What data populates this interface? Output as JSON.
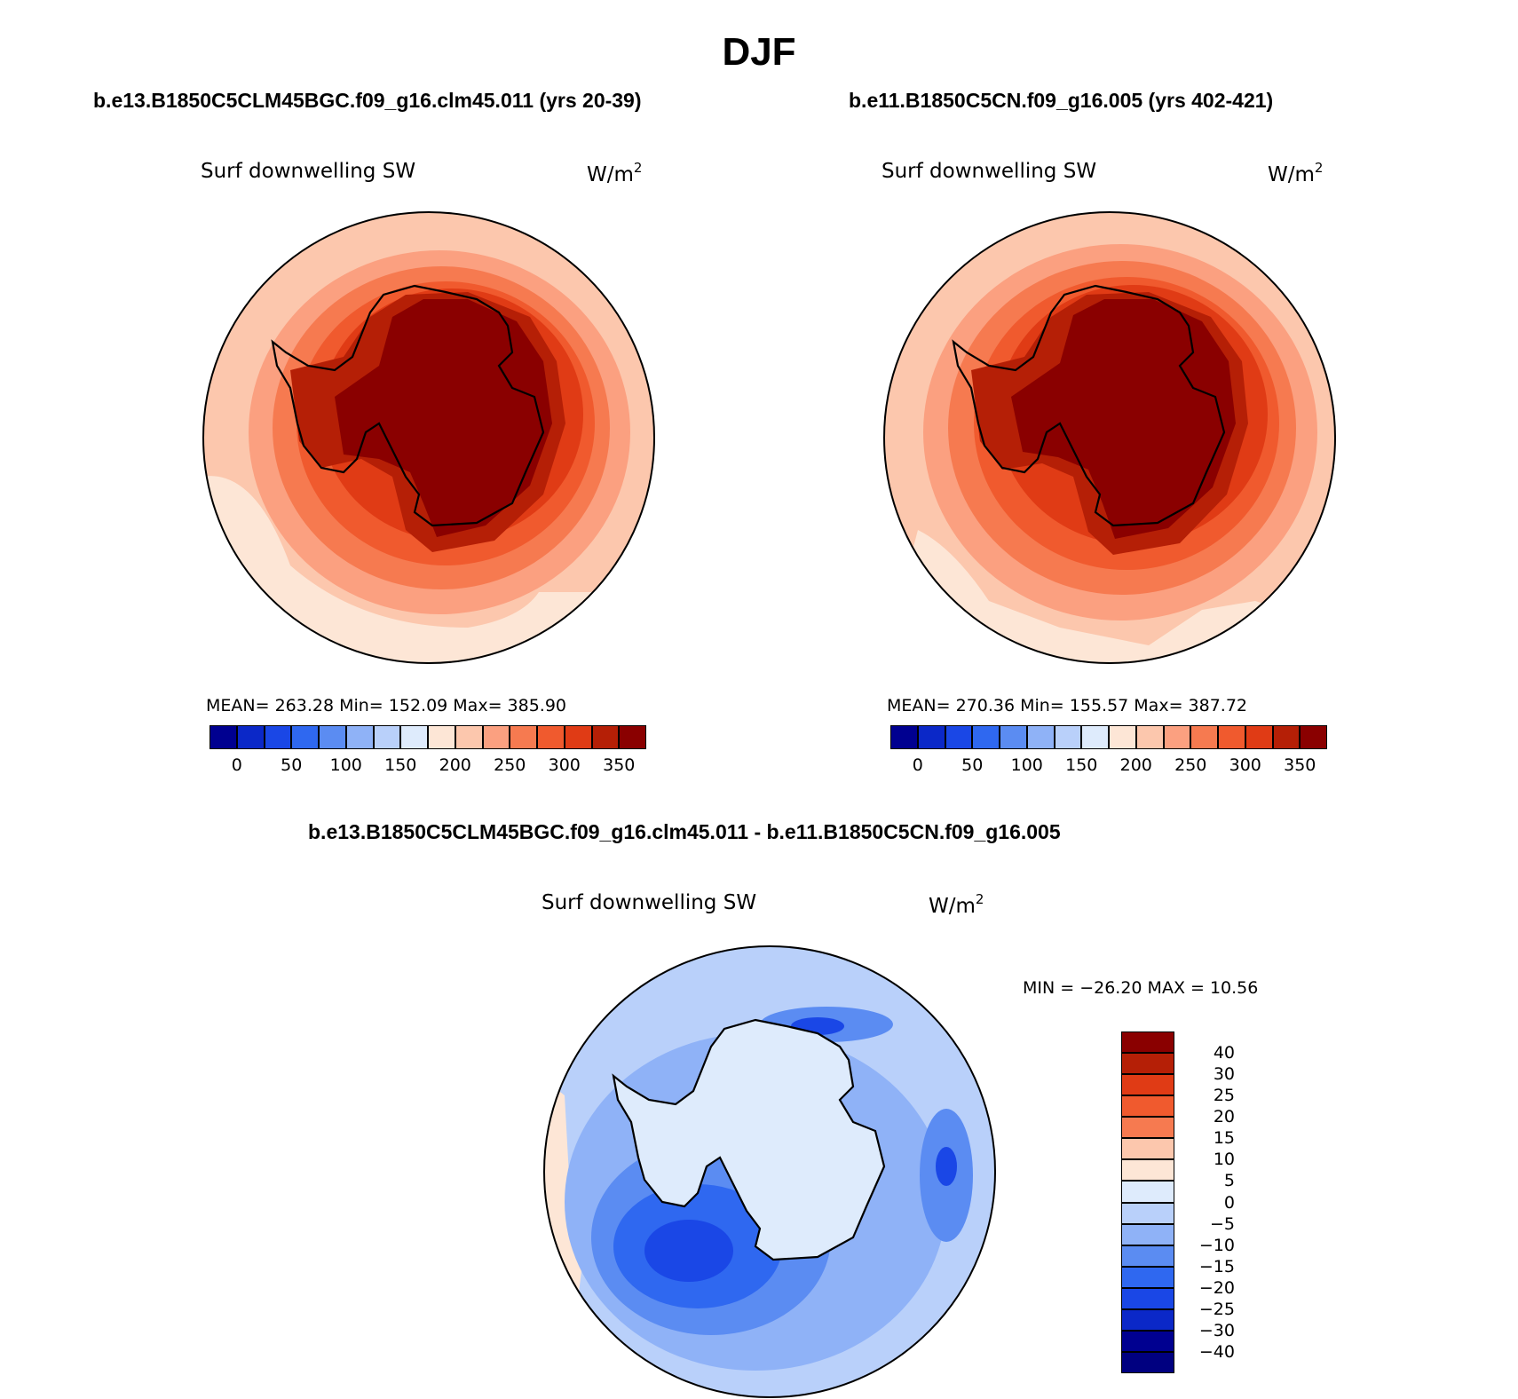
{
  "page_title": "DJF",
  "panels": [
    {
      "case_title": "b.e13.B1850C5CLM45BGC.f09_g16.clm45.011 (yrs 20-39)",
      "variable": "Surf downwelling SW",
      "units_base": "W/m",
      "units_exp": "2",
      "stats": "MEAN= 263.28   Min= 152.09   Max= 385.90"
    },
    {
      "case_title": "b.e11.B1850C5CN.f09_g16.005 (yrs 402-421)",
      "variable": "Surf downwelling SW",
      "units_base": "W/m",
      "units_exp": "2",
      "stats": "MEAN= 270.36   Min= 155.57   Max= 387.72"
    },
    {
      "case_title": "b.e13.B1850C5CLM45BGC.f09_g16.clm45.011 - b.e11.B1850C5CN.f09_g16.005",
      "variable": "Surf downwelling SW",
      "units_base": "W/m",
      "units_exp": "2",
      "stats": "MIN = −26.20 MAX =  10.56"
    }
  ],
  "colorbars": {
    "abs": {
      "colors": [
        "#000090",
        "#0b28c8",
        "#1a47e6",
        "#2f68f0",
        "#5b8cf2",
        "#8fb2f7",
        "#b9d0fa",
        "#deebfc",
        "#fde6d6",
        "#fcc7ad",
        "#fba080",
        "#f67a50",
        "#f05a2e",
        "#e03b15",
        "#b51f06",
        "#8a0000"
      ],
      "tick_labels": [
        "0",
        "50",
        "100",
        "150",
        "200",
        "250",
        "300",
        "350"
      ]
    },
    "diff": {
      "colors": [
        "#8a0000",
        "#b51f06",
        "#e03b15",
        "#f05a2e",
        "#f67a50",
        "#fcc7ad",
        "#fde6d6",
        "#deebfc",
        "#b9d0fa",
        "#8fb2f7",
        "#5b8cf2",
        "#2f68f0",
        "#1a47e6",
        "#0b28c8",
        "#000090"
      ],
      "tick_labels": [
        "40",
        "30",
        "25",
        "20",
        "15",
        "10",
        "5",
        "0",
        "−5",
        "−10",
        "−15",
        "−20",
        "−25",
        "−30",
        "−40"
      ]
    }
  },
  "chart_data": [
    {
      "type": "heatmap",
      "title": "b.e13.B1850C5CLM45BGC.f09_g16.clm45.011 (yrs 20-39)",
      "variable": "Surf downwelling SW",
      "units": "W/m2",
      "projection": "south-polar-stereographic",
      "mean": 263.28,
      "min": 152.09,
      "max": 385.9,
      "contour_levels": [
        0,
        25,
        50,
        75,
        100,
        125,
        150,
        175,
        200,
        225,
        250,
        275,
        300,
        325,
        350
      ]
    },
    {
      "type": "heatmap",
      "title": "b.e11.B1850C5CN.f09_g16.005 (yrs 402-421)",
      "variable": "Surf downwelling SW",
      "units": "W/m2",
      "projection": "south-polar-stereographic",
      "mean": 270.36,
      "min": 155.57,
      "max": 387.72,
      "contour_levels": [
        0,
        25,
        50,
        75,
        100,
        125,
        150,
        175,
        200,
        225,
        250,
        275,
        300,
        325,
        350
      ]
    },
    {
      "type": "heatmap",
      "title": "b.e13.B1850C5CLM45BGC.f09_g16.clm45.011 - b.e11.B1850C5CN.f09_g16.005",
      "variable": "Surf downwelling SW",
      "units": "W/m2",
      "projection": "south-polar-stereographic",
      "min": -26.2,
      "max": 10.56,
      "contour_levels": [
        -40,
        -30,
        -25,
        -20,
        -15,
        -10,
        -5,
        0,
        5,
        10,
        15,
        20,
        25,
        30,
        40
      ]
    }
  ]
}
